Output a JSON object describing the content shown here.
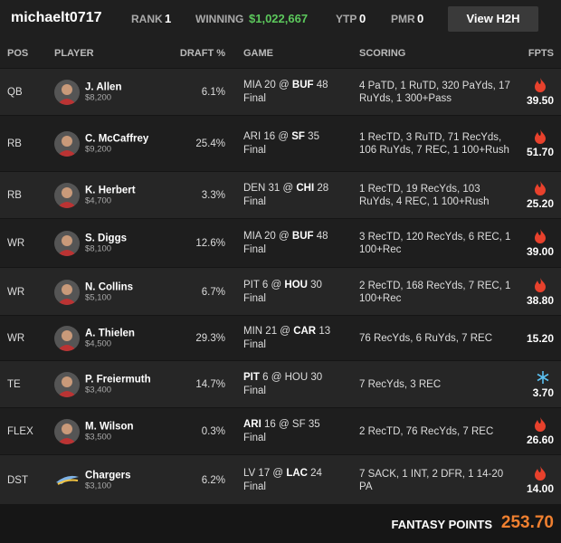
{
  "header": {
    "username": "michaelt0717",
    "rank_label": "RANK",
    "rank": "1",
    "winning_label": "WINNING",
    "winning": "$1,022,667",
    "ytp_label": "YTP",
    "ytp": "0",
    "pmr_label": "PMR",
    "pmr": "0",
    "button": "View H2H"
  },
  "table": {
    "columns": [
      "POS",
      "PLAYER",
      "DRAFT %",
      "GAME",
      "SCORING",
      "FPTS"
    ],
    "game_separator": "@",
    "rows": [
      {
        "pos": "QB",
        "name": "J. Allen",
        "salary": "$8,200",
        "draft": "6.1%",
        "away": "MIA",
        "away_score": "20",
        "home": "BUF",
        "home_score": "48",
        "player_team": "home",
        "status": "Final",
        "scoring": "4 PaTD, 1 RuTD, 320 PaYds, 17 RuYds, 1 300+Pass",
        "fpts": "39.50",
        "icon": "fire"
      },
      {
        "pos": "RB",
        "name": "C. McCaffrey",
        "salary": "$9,200",
        "draft": "25.4%",
        "away": "ARI",
        "away_score": "16",
        "home": "SF",
        "home_score": "35",
        "player_team": "home",
        "status": "Final",
        "scoring": "1 RecTD, 3 RuTD, 71 RecYds, 106 RuYds, 7 REC, 1 100+Rush",
        "fpts": "51.70",
        "icon": "fire"
      },
      {
        "pos": "RB",
        "name": "K. Herbert",
        "salary": "$4,700",
        "draft": "3.3%",
        "away": "DEN",
        "away_score": "31",
        "home": "CHI",
        "home_score": "28",
        "player_team": "home",
        "status": "Final",
        "scoring": "1 RecTD, 19 RecYds, 103 RuYds, 4 REC, 1 100+Rush",
        "fpts": "25.20",
        "icon": "fire"
      },
      {
        "pos": "WR",
        "name": "S. Diggs",
        "salary": "$8,100",
        "draft": "12.6%",
        "away": "MIA",
        "away_score": "20",
        "home": "BUF",
        "home_score": "48",
        "player_team": "home",
        "status": "Final",
        "scoring": "3 RecTD, 120 RecYds, 6 REC, 1 100+Rec",
        "fpts": "39.00",
        "icon": "fire"
      },
      {
        "pos": "WR",
        "name": "N. Collins",
        "salary": "$5,100",
        "draft": "6.7%",
        "away": "PIT",
        "away_score": "6",
        "home": "HOU",
        "home_score": "30",
        "player_team": "home",
        "status": "Final",
        "scoring": "2 RecTD, 168 RecYds, 7 REC, 1 100+Rec",
        "fpts": "38.80",
        "icon": "fire"
      },
      {
        "pos": "WR",
        "name": "A. Thielen",
        "salary": "$4,500",
        "draft": "29.3%",
        "away": "MIN",
        "away_score": "21",
        "home": "CAR",
        "home_score": "13",
        "player_team": "home",
        "status": "Final",
        "scoring": "76 RecYds, 6 RuYds, 7 REC",
        "fpts": "15.20",
        "icon": "none"
      },
      {
        "pos": "TE",
        "name": "P. Freiermuth",
        "salary": "$3,400",
        "draft": "14.7%",
        "away": "PIT",
        "away_score": "6",
        "home": "HOU",
        "home_score": "30",
        "player_team": "away",
        "status": "Final",
        "scoring": "7 RecYds, 3 REC",
        "fpts": "3.70",
        "icon": "ice"
      },
      {
        "pos": "FLEX",
        "name": "M. Wilson",
        "salary": "$3,500",
        "draft": "0.3%",
        "away": "ARI",
        "away_score": "16",
        "home": "SF",
        "home_score": "35",
        "player_team": "away",
        "status": "Final",
        "scoring": "2 RecTD, 76 RecYds, 7 REC",
        "fpts": "26.60",
        "icon": "fire"
      },
      {
        "pos": "DST",
        "name": "Chargers",
        "salary": "$3,100",
        "draft": "6.2%",
        "away": "LV",
        "away_score": "17",
        "home": "LAC",
        "home_score": "24",
        "player_team": "home",
        "status": "Final",
        "scoring": "7 SACK, 1 INT, 2 DFR, 1 14-20 PA",
        "fpts": "14.00",
        "icon": "fire"
      }
    ]
  },
  "footer": {
    "label": "FANTASY POINTS",
    "total": "253.70"
  }
}
